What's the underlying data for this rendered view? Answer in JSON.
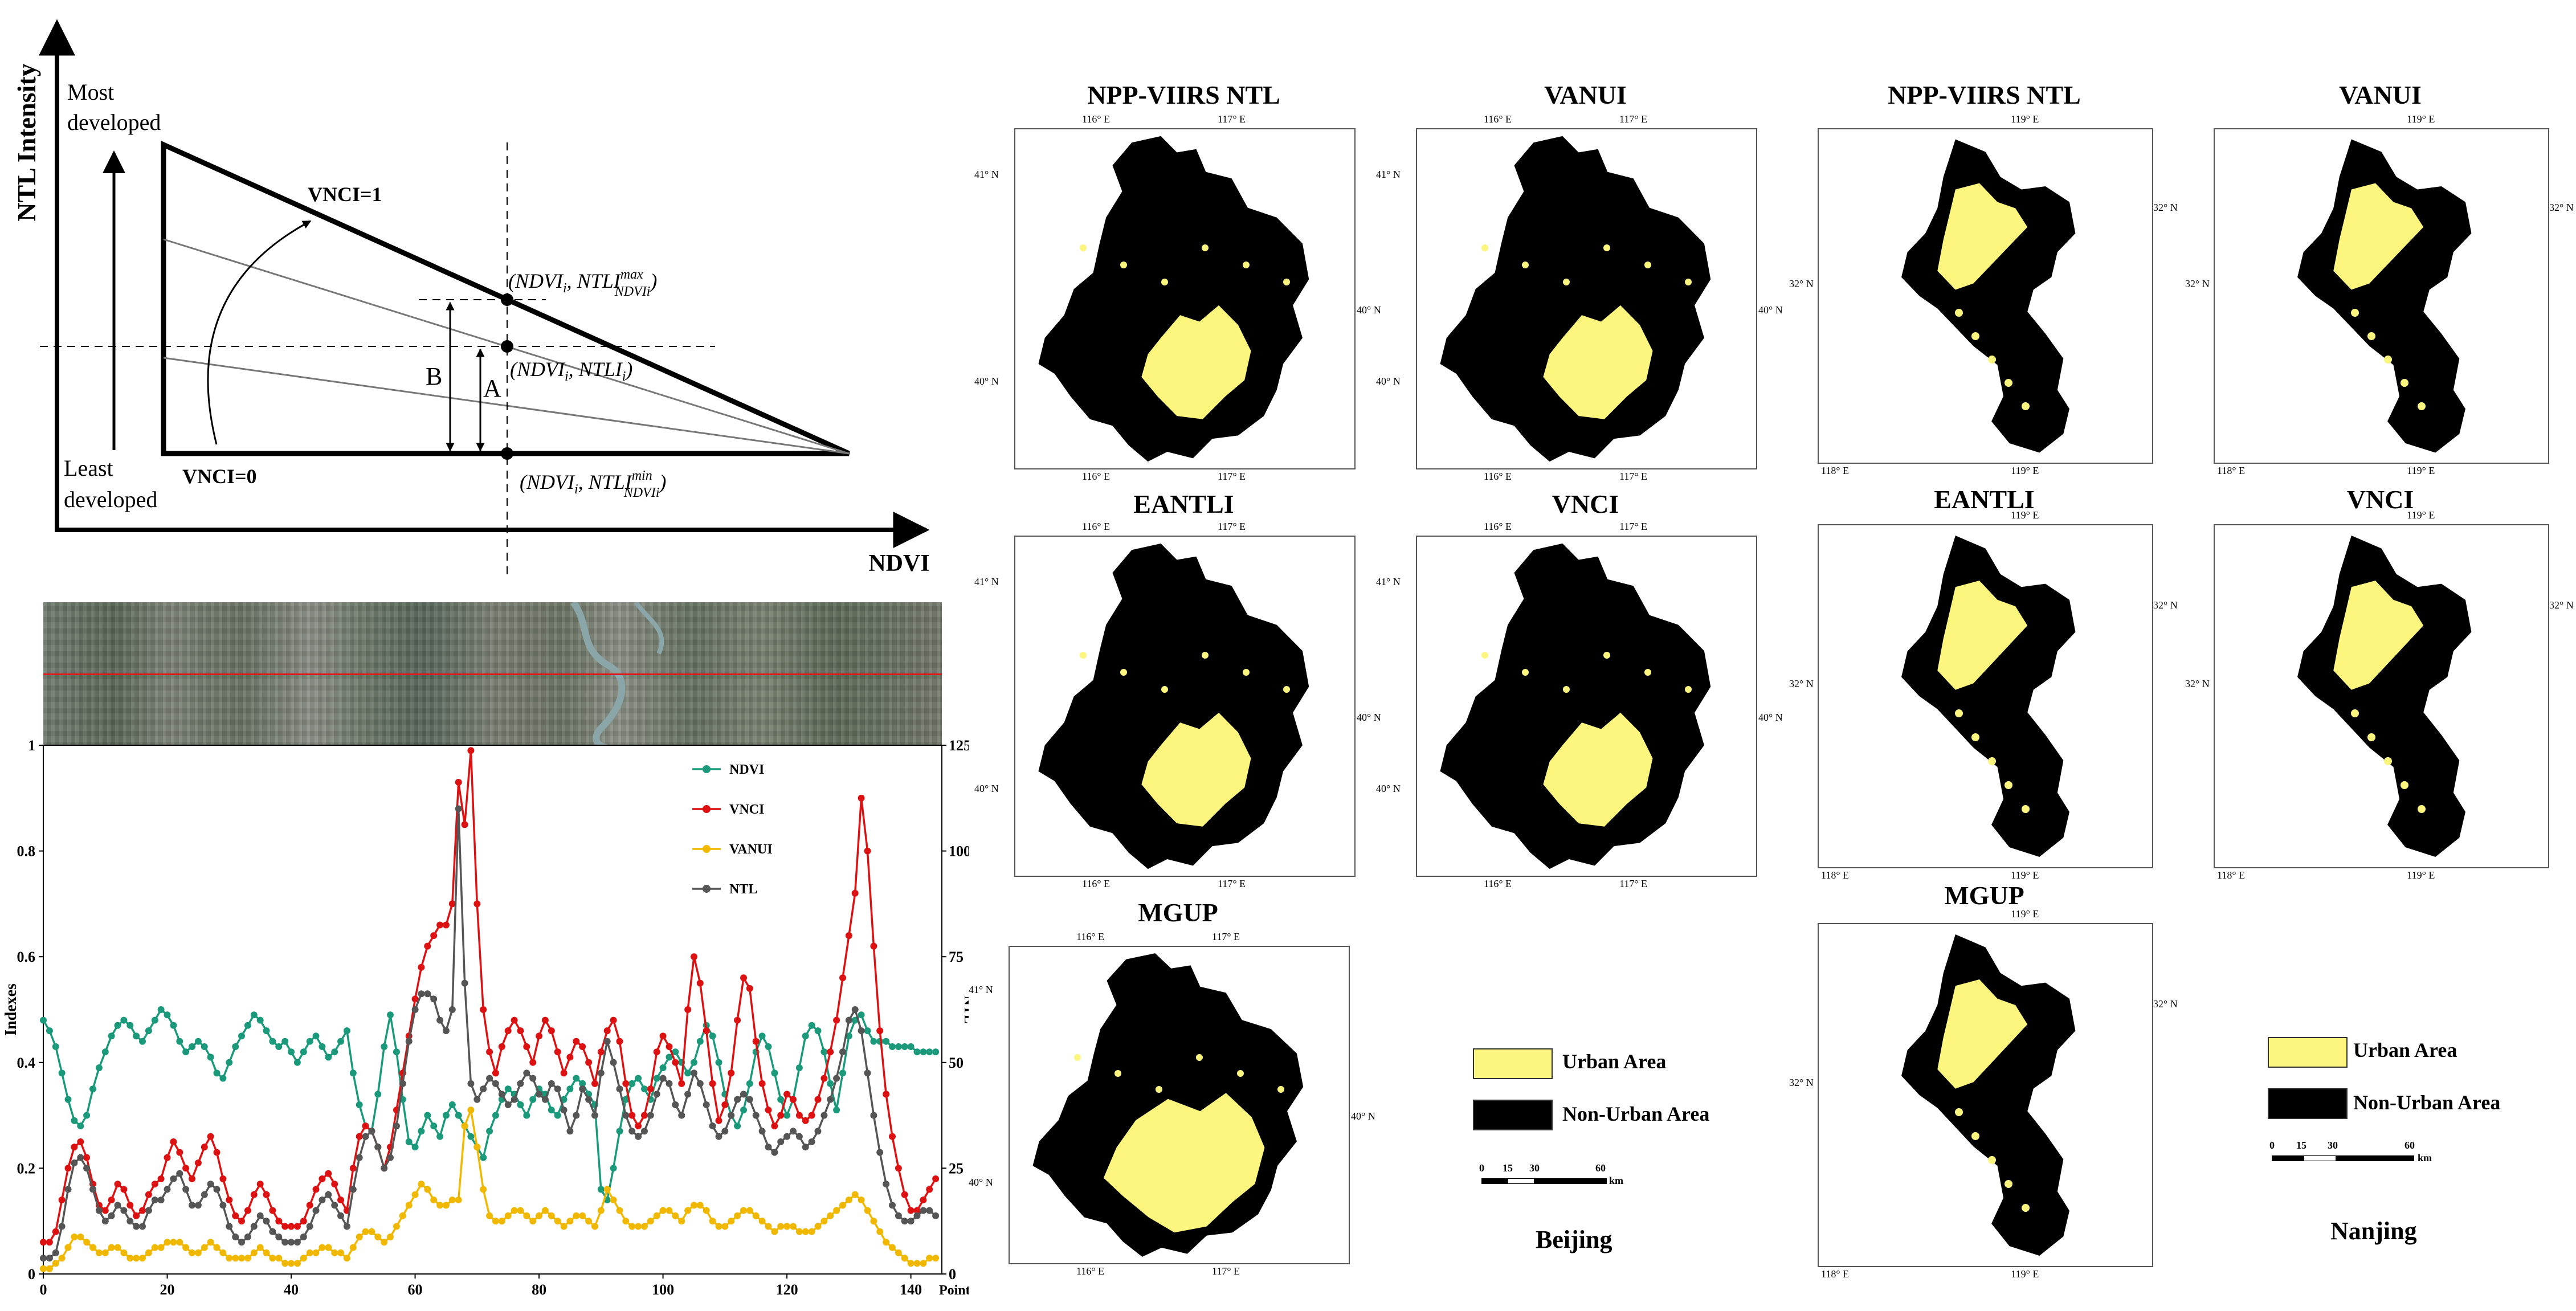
{
  "diagram": {
    "y_axis_label": "NTL Intensity",
    "x_axis_label": "NDVI",
    "most_label_1": "Most",
    "most_label_2": "developed",
    "least_label_1": "Least",
    "least_label_2": "developed",
    "vnci_top": "VNCI=1",
    "vnci_bottom": "VNCI=0",
    "label_B": "B",
    "label_A": "A",
    "point_max_main": "(NDVI",
    "point_max_sub": "i",
    "point_max_rest": ", NTLI",
    "point_max_sup": "max",
    "point_max_sub2": "NDVIi",
    "point_max_close": ")",
    "point_mid_main": "(NDVI",
    "point_mid_sub": "i",
    "point_mid_rest": ", NTLI",
    "point_mid_sub2": "i",
    "point_mid_close": ")",
    "point_min_main": "(NDVI",
    "point_min_sub": "i",
    "point_min_rest": ", NTLI",
    "point_min_sup": "min",
    "point_min_sub2": "NDVIi",
    "point_min_close": ")"
  },
  "chart_data": {
    "type": "line",
    "xlabel": "Point ID",
    "ylabel": "Indexes",
    "y2label": "NTL",
    "xlim": [
      0,
      145
    ],
    "ylim": [
      0,
      1
    ],
    "y2lim": [
      0,
      125
    ],
    "x_ticks": [
      "0",
      "20",
      "40",
      "60",
      "80",
      "100",
      "120",
      "140"
    ],
    "y_ticks": [
      "0",
      "0.2",
      "0.4",
      "0.6",
      "0.8",
      "1"
    ],
    "y2_ticks": [
      "0",
      "25",
      "50",
      "75",
      "100",
      "125"
    ],
    "legend_position": "top-right",
    "series": [
      {
        "name": "NDVI",
        "color": "#1a9a7a",
        "values": [
          0.48,
          0.46,
          0.43,
          0.38,
          0.33,
          0.29,
          0.28,
          0.3,
          0.35,
          0.39,
          0.42,
          0.45,
          0.47,
          0.48,
          0.47,
          0.45,
          0.44,
          0.46,
          0.48,
          0.5,
          0.49,
          0.47,
          0.44,
          0.42,
          0.43,
          0.44,
          0.43,
          0.41,
          0.38,
          0.37,
          0.4,
          0.43,
          0.45,
          0.47,
          0.49,
          0.48,
          0.46,
          0.44,
          0.43,
          0.44,
          0.42,
          0.4,
          0.42,
          0.44,
          0.45,
          0.43,
          0.41,
          0.42,
          0.44,
          0.46,
          0.38,
          0.32,
          0.28,
          0.27,
          0.34,
          0.43,
          0.49,
          0.42,
          0.33,
          0.25,
          0.24,
          0.27,
          0.3,
          0.28,
          0.26,
          0.3,
          0.32,
          0.3,
          0.28,
          0.26,
          0.24,
          0.22,
          0.27,
          0.3,
          0.33,
          0.35,
          0.34,
          0.32,
          0.3,
          0.33,
          0.35,
          0.34,
          0.31,
          0.3,
          0.33,
          0.35,
          0.37,
          0.36,
          0.34,
          0.32,
          0.16,
          0.14,
          0.2,
          0.27,
          0.33,
          0.36,
          0.37,
          0.35,
          0.33,
          0.37,
          0.39,
          0.41,
          0.42,
          0.4,
          0.38,
          0.4,
          0.44,
          0.47,
          0.45,
          0.4,
          0.34,
          0.3,
          0.28,
          0.31,
          0.36,
          0.42,
          0.45,
          0.43,
          0.38,
          0.33,
          0.3,
          0.33,
          0.39,
          0.45,
          0.47,
          0.46,
          0.42,
          0.36,
          0.31,
          0.38,
          0.45,
          0.48,
          0.49,
          0.46,
          0.44,
          0.44,
          0.44,
          0.43,
          0.43,
          0.43,
          0.43,
          0.42,
          0.42,
          0.42,
          0.42
        ]
      },
      {
        "name": "VNCI",
        "color": "#dd1111",
        "values": [
          0.06,
          0.06,
          0.08,
          0.14,
          0.2,
          0.24,
          0.25,
          0.22,
          0.17,
          0.13,
          0.12,
          0.14,
          0.17,
          0.16,
          0.13,
          0.11,
          0.12,
          0.15,
          0.17,
          0.18,
          0.22,
          0.25,
          0.23,
          0.2,
          0.18,
          0.21,
          0.24,
          0.26,
          0.23,
          0.18,
          0.14,
          0.11,
          0.1,
          0.12,
          0.15,
          0.17,
          0.15,
          0.12,
          0.1,
          0.09,
          0.09,
          0.09,
          0.1,
          0.13,
          0.16,
          0.18,
          0.19,
          0.17,
          0.14,
          0.12,
          0.2,
          0.26,
          0.28,
          0.27,
          0.24,
          0.2,
          0.24,
          0.31,
          0.38,
          0.45,
          0.52,
          0.58,
          0.62,
          0.64,
          0.66,
          0.66,
          0.7,
          0.93,
          0.85,
          0.99,
          0.7,
          0.5,
          0.42,
          0.38,
          0.43,
          0.46,
          0.48,
          0.46,
          0.43,
          0.4,
          0.45,
          0.48,
          0.46,
          0.42,
          0.38,
          0.41,
          0.44,
          0.43,
          0.4,
          0.36,
          0.42,
          0.46,
          0.48,
          0.44,
          0.36,
          0.3,
          0.28,
          0.3,
          0.35,
          0.42,
          0.45,
          0.43,
          0.4,
          0.36,
          0.5,
          0.6,
          0.55,
          0.46,
          0.36,
          0.29,
          0.32,
          0.38,
          0.48,
          0.56,
          0.54,
          0.44,
          0.36,
          0.31,
          0.28,
          0.3,
          0.34,
          0.33,
          0.3,
          0.29,
          0.3,
          0.33,
          0.37,
          0.42,
          0.48,
          0.56,
          0.64,
          0.72,
          0.9,
          0.8,
          0.62,
          0.46,
          0.34,
          0.26,
          0.2,
          0.15,
          0.12,
          0.12,
          0.14,
          0.16,
          0.18
        ]
      },
      {
        "name": "VANUI",
        "color": "#f0b800",
        "values": [
          0.01,
          0.01,
          0.02,
          0.03,
          0.05,
          0.07,
          0.07,
          0.06,
          0.05,
          0.04,
          0.04,
          0.05,
          0.05,
          0.04,
          0.03,
          0.03,
          0.03,
          0.04,
          0.05,
          0.05,
          0.06,
          0.06,
          0.06,
          0.05,
          0.04,
          0.04,
          0.05,
          0.06,
          0.05,
          0.04,
          0.03,
          0.03,
          0.03,
          0.03,
          0.04,
          0.05,
          0.04,
          0.03,
          0.03,
          0.02,
          0.02,
          0.02,
          0.03,
          0.04,
          0.04,
          0.05,
          0.05,
          0.04,
          0.04,
          0.03,
          0.05,
          0.07,
          0.08,
          0.08,
          0.07,
          0.06,
          0.07,
          0.09,
          0.11,
          0.13,
          0.15,
          0.17,
          0.16,
          0.14,
          0.13,
          0.13,
          0.14,
          0.14,
          0.28,
          0.31,
          0.24,
          0.16,
          0.11,
          0.1,
          0.1,
          0.11,
          0.12,
          0.12,
          0.11,
          0.1,
          0.11,
          0.12,
          0.11,
          0.1,
          0.09,
          0.1,
          0.11,
          0.11,
          0.1,
          0.09,
          0.12,
          0.16,
          0.14,
          0.12,
          0.1,
          0.09,
          0.09,
          0.09,
          0.1,
          0.11,
          0.12,
          0.12,
          0.11,
          0.1,
          0.12,
          0.13,
          0.13,
          0.12,
          0.1,
          0.09,
          0.09,
          0.1,
          0.11,
          0.12,
          0.12,
          0.11,
          0.1,
          0.09,
          0.08,
          0.09,
          0.09,
          0.09,
          0.08,
          0.08,
          0.08,
          0.09,
          0.1,
          0.11,
          0.12,
          0.13,
          0.14,
          0.15,
          0.14,
          0.12,
          0.1,
          0.08,
          0.06,
          0.05,
          0.04,
          0.03,
          0.02,
          0.02,
          0.02,
          0.03,
          0.03
        ]
      },
      {
        "name": "NTL",
        "color": "#555555",
        "values": [
          0.03,
          0.03,
          0.04,
          0.09,
          0.16,
          0.21,
          0.22,
          0.2,
          0.16,
          0.12,
          0.1,
          0.11,
          0.13,
          0.12,
          0.1,
          0.09,
          0.09,
          0.12,
          0.14,
          0.14,
          0.16,
          0.18,
          0.19,
          0.16,
          0.13,
          0.13,
          0.15,
          0.17,
          0.16,
          0.13,
          0.09,
          0.07,
          0.06,
          0.07,
          0.09,
          0.11,
          0.1,
          0.08,
          0.07,
          0.06,
          0.06,
          0.06,
          0.07,
          0.09,
          0.12,
          0.14,
          0.15,
          0.13,
          0.11,
          0.09,
          0.16,
          0.22,
          0.26,
          0.27,
          0.24,
          0.2,
          0.22,
          0.28,
          0.36,
          0.44,
          0.5,
          0.53,
          0.53,
          0.52,
          0.48,
          0.46,
          0.5,
          0.88,
          0.55,
          0.36,
          0.33,
          0.35,
          0.37,
          0.36,
          0.34,
          0.32,
          0.33,
          0.36,
          0.38,
          0.37,
          0.34,
          0.33,
          0.36,
          0.35,
          0.31,
          0.27,
          0.3,
          0.35,
          0.33,
          0.3,
          0.38,
          0.44,
          0.4,
          0.35,
          0.3,
          0.27,
          0.26,
          0.27,
          0.3,
          0.34,
          0.37,
          0.36,
          0.32,
          0.3,
          0.34,
          0.38,
          0.36,
          0.32,
          0.28,
          0.26,
          0.27,
          0.3,
          0.33,
          0.34,
          0.33,
          0.3,
          0.27,
          0.24,
          0.23,
          0.25,
          0.26,
          0.27,
          0.26,
          0.24,
          0.25,
          0.27,
          0.3,
          0.33,
          0.37,
          0.42,
          0.48,
          0.5,
          0.46,
          0.38,
          0.3,
          0.23,
          0.17,
          0.13,
          0.11,
          0.1,
          0.1,
          0.11,
          0.12,
          0.12,
          0.11
        ]
      }
    ]
  },
  "maps": {
    "beijing": {
      "titles": [
        "NPP-VIIRS NTL",
        "VANUI",
        "EANTLI",
        "VNCI",
        "MGUP"
      ],
      "top_ticks": [
        "116° E",
        "117° E"
      ],
      "bottom_ticks": [
        "116° E",
        "117° E"
      ],
      "left_ticks": [
        "41° N",
        "40° N"
      ],
      "right_tick": "40° N"
    },
    "nanjing": {
      "titles": [
        "NPP-VIIRS NTL",
        "VANUI",
        "EANTLI",
        "VNCI",
        "MGUP"
      ],
      "top_tick": "119° E",
      "bottom_ticks": [
        "118° E",
        "119° E"
      ],
      "left_tick": "32° N",
      "right_tick": "32° N"
    }
  },
  "legend": {
    "urban": "Urban Area",
    "non_urban": "Non-Urban Area",
    "urban_color": "#fcf57e",
    "non_urban_color": "#000000",
    "scale_labels": [
      "0",
      "15",
      "30",
      "60"
    ],
    "scale_unit": "km"
  },
  "cities": {
    "beijing": "Beijing",
    "nanjing": "Nanjing"
  }
}
